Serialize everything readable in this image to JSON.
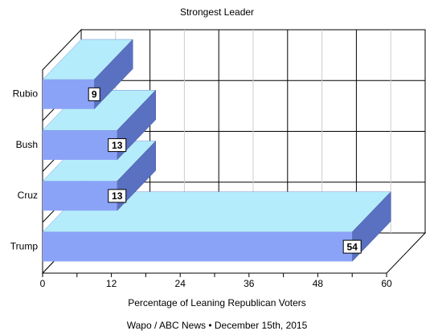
{
  "chart_data": {
    "type": "bar3d",
    "title": "Strongest Leader",
    "categories": [
      "Rubio",
      "Bush",
      "Cruz",
      "Trump"
    ],
    "values": [
      9,
      13,
      13,
      54
    ],
    "colors": {
      "front": "#8ba3f7",
      "top": "#b5ecfc",
      "side": "#5a70c0"
    },
    "xlim": [
      0,
      60
    ],
    "xticks": [
      0,
      12,
      24,
      36,
      48,
      60
    ],
    "minor_xticks": [
      6,
      18,
      30,
      42,
      54
    ],
    "grid": true,
    "x_label": "Percentage of Leaning Republican Voters",
    "source": "Wapo / ABC News • December 15th, 2015"
  }
}
